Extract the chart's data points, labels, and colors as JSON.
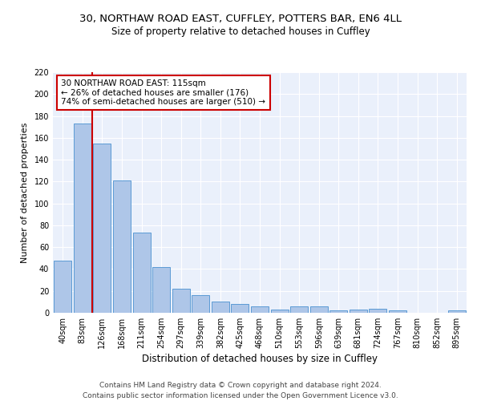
{
  "title1": "30, NORTHAW ROAD EAST, CUFFLEY, POTTERS BAR, EN6 4LL",
  "title2": "Size of property relative to detached houses in Cuffley",
  "xlabel": "Distribution of detached houses by size in Cuffley",
  "ylabel": "Number of detached properties",
  "categories": [
    "40sqm",
    "83sqm",
    "126sqm",
    "168sqm",
    "211sqm",
    "254sqm",
    "297sqm",
    "339sqm",
    "382sqm",
    "425sqm",
    "468sqm",
    "510sqm",
    "553sqm",
    "596sqm",
    "639sqm",
    "681sqm",
    "724sqm",
    "767sqm",
    "810sqm",
    "852sqm",
    "895sqm"
  ],
  "values": [
    48,
    173,
    155,
    121,
    73,
    42,
    22,
    16,
    10,
    8,
    6,
    3,
    6,
    6,
    2,
    3,
    4,
    2,
    0,
    0,
    2
  ],
  "bar_color": "#aec6e8",
  "bar_edge_color": "#5b9bd5",
  "redline_x": 1.5,
  "redline_color": "#cc0000",
  "annotation_text": "30 NORTHAW ROAD EAST: 115sqm\n← 26% of detached houses are smaller (176)\n74% of semi-detached houses are larger (510) →",
  "annotation_box_edgecolor": "#cc0000",
  "annotation_box_facecolor": "#ffffff",
  "ylim": [
    0,
    220
  ],
  "yticks": [
    0,
    20,
    40,
    60,
    80,
    100,
    120,
    140,
    160,
    180,
    200,
    220
  ],
  "footer1": "Contains HM Land Registry data © Crown copyright and database right 2024.",
  "footer2": "Contains public sector information licensed under the Open Government Licence v3.0.",
  "background_color": "#eaf0fb",
  "grid_color": "#ffffff",
  "title1_fontsize": 9.5,
  "title2_fontsize": 8.5,
  "xlabel_fontsize": 8.5,
  "ylabel_fontsize": 8,
  "tick_fontsize": 7,
  "annotation_fontsize": 7.5,
  "footer_fontsize": 6.5
}
